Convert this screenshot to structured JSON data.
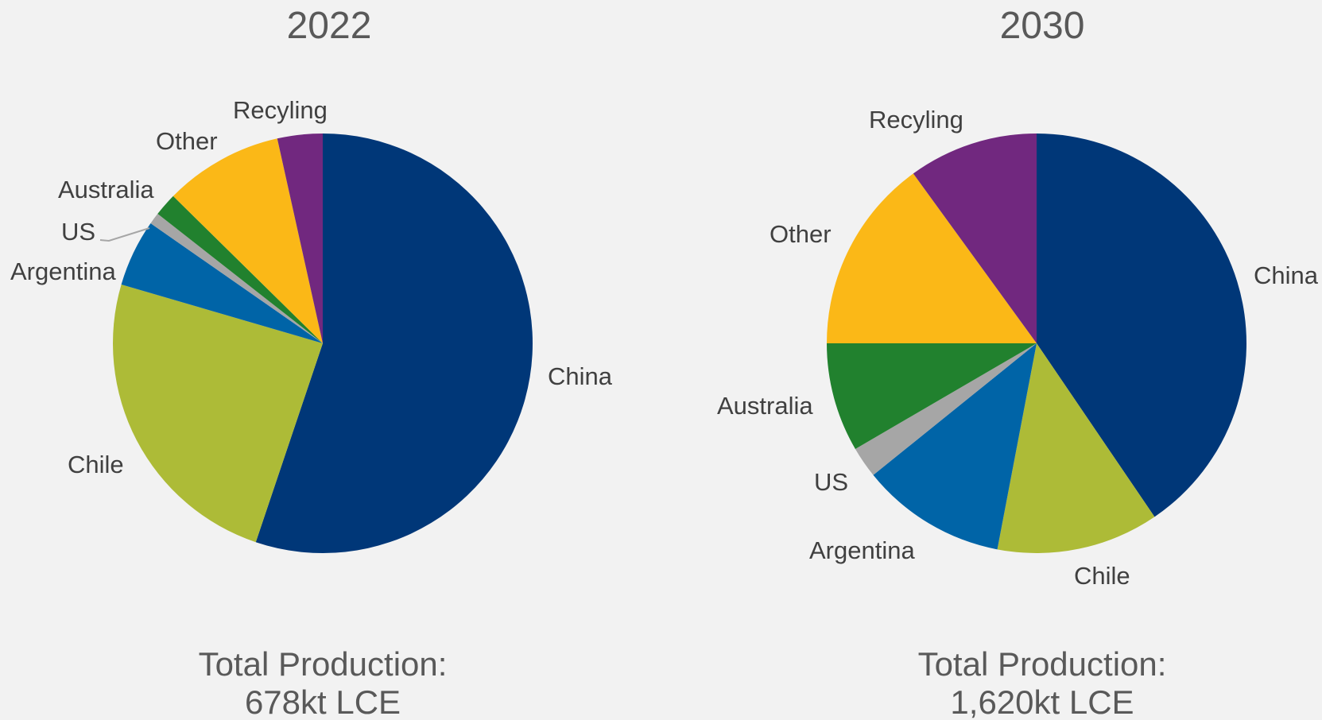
{
  "colors": {
    "background": "#f2f2f2",
    "China": "#003778",
    "Chile": "#adbb37",
    "Argentina": "#0064a7",
    "US": "#a6a6a6",
    "Australia": "#21812e",
    "Other": "#fbb817",
    "Recyling": "#71287f"
  },
  "chart_data": [
    {
      "type": "pie",
      "title": "2022",
      "categories": [
        "China",
        "Chile",
        "Argentina",
        "US",
        "Australia",
        "Other",
        "Recyling"
      ],
      "values": [
        55.5,
        24.5,
        5.2,
        0.9,
        1.8,
        9.2,
        3.5
      ],
      "value_unit": "percent of total production (estimated)",
      "start_angle_deg": 0,
      "direction": "clockwise",
      "total": {
        "label": "Total Production:",
        "value": "678kt LCE"
      }
    },
    {
      "type": "pie",
      "title": "2030",
      "categories": [
        "China",
        "Chile",
        "Argentina",
        "US",
        "Australia",
        "Other",
        "Recyling"
      ],
      "values": [
        40.5,
        12.5,
        11.2,
        2.4,
        8.4,
        15.0,
        10.0
      ],
      "value_unit": "percent of total production (estimated)",
      "start_angle_deg": 0,
      "direction": "clockwise",
      "total": {
        "label": "Total Production:",
        "value": "1,620kt LCE"
      }
    }
  ]
}
